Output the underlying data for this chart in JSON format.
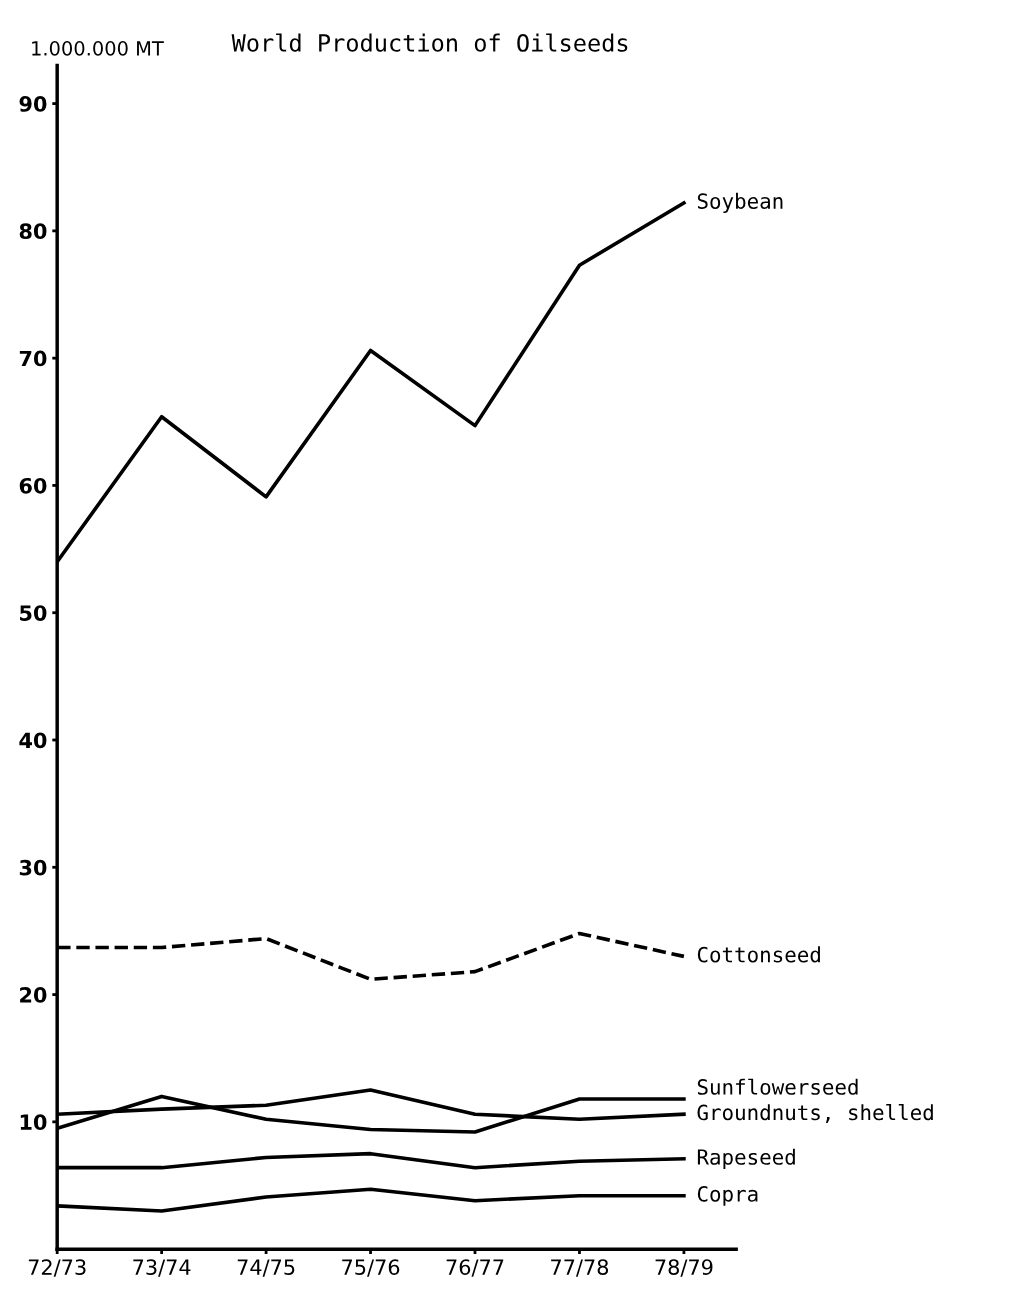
{
  "chart_data": {
    "type": "line",
    "title": "World Production of Oilseeds",
    "ylabel": "1.000.000 MT",
    "categories": [
      "72/73",
      "73/74",
      "74/75",
      "75/76",
      "76/77",
      "77/78",
      "78/79"
    ],
    "series": [
      {
        "name": "Soybean",
        "color": "#000000",
        "values": [
          54.0,
          65.4,
          59.1,
          70.6,
          64.7,
          77.3,
          82.2
        ]
      },
      {
        "name": "Cottonseed",
        "color": "#000000",
        "line_style": "dashed",
        "values": [
          23.7,
          23.7,
          24.4,
          21.2,
          21.8,
          24.8,
          23.0
        ]
      },
      {
        "name": "Sunflowerseed",
        "color": "#000000",
        "values": [
          9.5,
          12.0,
          10.2,
          9.4,
          9.2,
          11.8,
          11.8
        ]
      },
      {
        "name": "Groundnuts, shelled",
        "color": "#000000",
        "values": [
          10.6,
          11.0,
          11.3,
          12.5,
          10.6,
          10.2,
          10.6
        ]
      },
      {
        "name": "Rapeseed",
        "color": "#000000",
        "values": [
          6.4,
          6.4,
          7.2,
          7.5,
          6.4,
          6.9,
          7.1
        ]
      },
      {
        "name": "Copra",
        "color": "#000000",
        "values": [
          3.4,
          3.0,
          4.1,
          4.7,
          3.8,
          4.2,
          4.2
        ]
      }
    ],
    "ylim": [
      0,
      93
    ],
    "yticks": [
      10,
      20,
      30,
      40,
      50,
      60,
      70,
      80,
      90
    ],
    "grid": false,
    "legend": false,
    "marker": "none",
    "line_style": "solid"
  }
}
